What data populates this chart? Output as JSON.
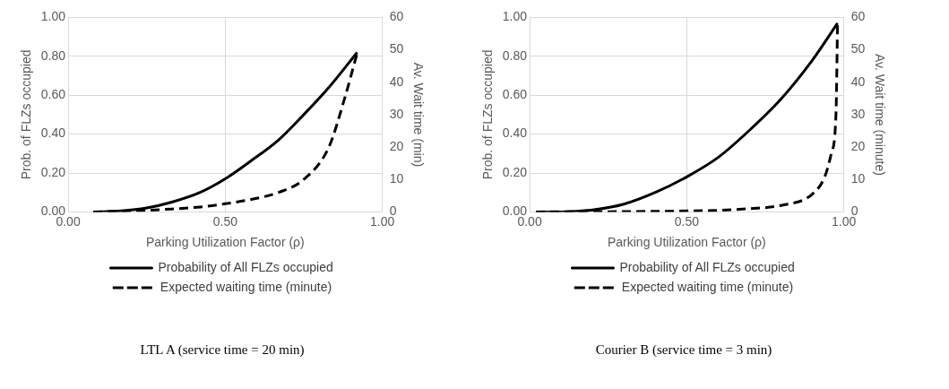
{
  "chart_data": [
    {
      "type": "line",
      "xlabel": "Parking Utilization Factor (ρ)",
      "ylabel": "Prob. of FLZs occupied",
      "y2label": "Av. Wait time (min)",
      "xlim": [
        0,
        1
      ],
      "xticks": [
        {
          "value": 0,
          "label": "0.00"
        },
        {
          "value": 0.5,
          "label": "0.50"
        },
        {
          "value": 1,
          "label": "1.00"
        }
      ],
      "ylim": [
        0,
        1
      ],
      "yticks": [
        {
          "value": 0,
          "label": "0.00"
        },
        {
          "value": 0.2,
          "label": "0.20"
        },
        {
          "value": 0.4,
          "label": "0.40"
        },
        {
          "value": 0.6,
          "label": "0.60"
        },
        {
          "value": 0.8,
          "label": "0.80"
        },
        {
          "value": 1,
          "label": "1.00"
        }
      ],
      "y2lim": [
        0,
        60
      ],
      "y2ticks": [
        0,
        10,
        20,
        30,
        40,
        50,
        60
      ],
      "grid": true,
      "legend": "bottom",
      "marker": "none",
      "annotations": [
        "LTL A (service time = 20 min)"
      ],
      "series": [
        {
          "name": "Probability of All FLZs occupied",
          "color": "#000000",
          "line_style": "solid",
          "x": [
            0.08,
            0.17,
            0.25,
            0.33,
            0.42,
            0.5,
            0.58,
            0.67,
            0.75,
            0.83,
            0.92
          ],
          "values": [
            0,
            0.005,
            0.02,
            0.05,
            0.1,
            0.17,
            0.26,
            0.37,
            0.5,
            0.64,
            0.82
          ]
        },
        {
          "name": "Expected waiting time (minute)",
          "color": "#000000",
          "line_style": "dashed",
          "axis": "y2",
          "x": [
            0.08,
            0.17,
            0.25,
            0.33,
            0.42,
            0.5,
            0.58,
            0.67,
            0.75,
            0.83,
            0.88,
            0.92
          ],
          "values": [
            0,
            0.2,
            0.5,
            0.9,
            1.5,
            2.5,
            3.8,
            6,
            10,
            20,
            35,
            49
          ]
        }
      ]
    },
    {
      "type": "line",
      "xlabel": "Parking Utilization Factor (ρ)",
      "ylabel": "Prob. of FLZs occupied",
      "y2label": "Av. Wait time (minute)",
      "xlim": [
        0,
        1
      ],
      "xticks": [
        {
          "value": 0,
          "label": "0.00"
        },
        {
          "value": 0.5,
          "label": "0.50"
        },
        {
          "value": 1,
          "label": "1.00"
        }
      ],
      "ylim": [
        0,
        1
      ],
      "yticks": [
        {
          "value": 0,
          "label": "0.00"
        },
        {
          "value": 0.2,
          "label": "0.20"
        },
        {
          "value": 0.4,
          "label": "0.40"
        },
        {
          "value": 0.6,
          "label": "0.60"
        },
        {
          "value": 0.8,
          "label": "0.80"
        },
        {
          "value": 1,
          "label": "1.00"
        }
      ],
      "y2lim": [
        0,
        60
      ],
      "y2ticks": [
        0,
        10,
        20,
        30,
        40,
        50,
        60
      ],
      "grid": true,
      "legend": "bottom",
      "marker": "none",
      "annotations": [
        "Courier B (service time = 3 min)"
      ],
      "series": [
        {
          "name": "Probability of All FLZs occupied",
          "color": "#000000",
          "line_style": "solid",
          "x": [
            0.02,
            0.1,
            0.2,
            0.3,
            0.4,
            0.5,
            0.6,
            0.7,
            0.8,
            0.9,
            0.98
          ],
          "values": [
            0,
            0,
            0.01,
            0.04,
            0.1,
            0.18,
            0.28,
            0.42,
            0.58,
            0.78,
            0.97
          ]
        },
        {
          "name": "Expected waiting time (minute)",
          "color": "#000000",
          "line_style": "dashed",
          "axis": "y2",
          "x": [
            0.02,
            0.3,
            0.5,
            0.6,
            0.7,
            0.8,
            0.9,
            0.94,
            0.96,
            0.975,
            0.98
          ],
          "values": [
            0,
            0.1,
            0.3,
            0.5,
            1,
            2,
            5.5,
            11,
            18,
            30,
            58
          ]
        }
      ]
    }
  ]
}
